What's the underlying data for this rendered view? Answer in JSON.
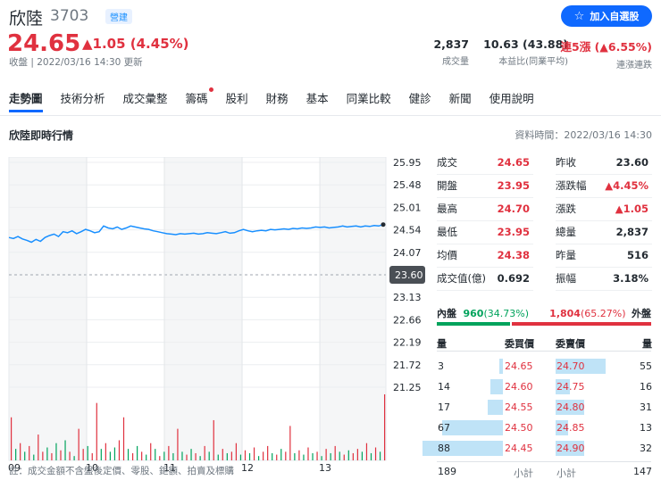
{
  "header": {
    "name": "欣陸",
    "code": "3703",
    "market_badge": "營建",
    "add_button": "加入自選股",
    "price": "24.65",
    "change": "▲1.05 (4.45%)",
    "status": "收盤 | 2022/03/16 14:30 更新",
    "stats": [
      {
        "value": "2,837",
        "label": "成交量"
      },
      {
        "value": "10.63 (43.88)",
        "label": "本益比(同業平均)"
      },
      {
        "value": "連5漲 (▲6.55%)",
        "label": "連漲連跌"
      }
    ]
  },
  "tabs": [
    {
      "label": "走勢圖",
      "active": true
    },
    {
      "label": "技術分析"
    },
    {
      "label": "成交彙整"
    },
    {
      "label": "籌碼",
      "dot": true
    },
    {
      "label": "股利"
    },
    {
      "label": "財務"
    },
    {
      "label": "基本"
    },
    {
      "label": "同業比較"
    },
    {
      "label": "健診"
    },
    {
      "label": "新聞"
    },
    {
      "label": "使用說明"
    }
  ],
  "section": {
    "title": "欣陸即時行情",
    "data_time": "資料時間：2022/03/16 14:30"
  },
  "chart_data": {
    "type": "line",
    "title": "",
    "y_ticks": [
      "25.95",
      "25.48",
      "25.01",
      "24.54",
      "24.07",
      "23.60",
      "23.13",
      "22.66",
      "22.19",
      "21.72",
      "21.25"
    ],
    "x_ticks": [
      "09",
      "10",
      "11",
      "12",
      "13"
    ],
    "ylim": [
      21.25,
      25.95
    ],
    "reference": 23.6,
    "reference_label": "23.60",
    "line": [
      24.38,
      24.36,
      24.4,
      24.35,
      24.32,
      24.28,
      24.34,
      24.3,
      24.38,
      24.42,
      24.45,
      24.4,
      24.5,
      24.48,
      24.52,
      24.46,
      24.5,
      24.55,
      24.52,
      24.48,
      24.5,
      24.62,
      24.58,
      24.56,
      24.6,
      24.55,
      24.58,
      24.62,
      24.6,
      24.58,
      24.56,
      24.55,
      24.52,
      24.5,
      24.48,
      24.46,
      24.45,
      24.44,
      24.46,
      24.45,
      24.46,
      24.47,
      24.45,
      24.46,
      24.48,
      24.47,
      24.46,
      24.48,
      24.5,
      24.47,
      24.48,
      24.52,
      24.55,
      24.52,
      24.5,
      24.52,
      24.53,
      24.52,
      24.55,
      24.54,
      24.55,
      24.56,
      24.55,
      24.57,
      24.56,
      24.58,
      24.57,
      24.58,
      24.6,
      24.59,
      24.6,
      24.58,
      24.59,
      24.6,
      24.62,
      24.6,
      24.61,
      24.62,
      24.6,
      24.62,
      24.61,
      24.63,
      24.62,
      24.65
    ],
    "volume": [
      30,
      8,
      12,
      6,
      10,
      4,
      18,
      6,
      9,
      5,
      12,
      7,
      14,
      6,
      3,
      22,
      8,
      10,
      5,
      40,
      8,
      12,
      6,
      9,
      14,
      30,
      8,
      5,
      10,
      6,
      4,
      12,
      8,
      3,
      6,
      10,
      5,
      22,
      6,
      4,
      8,
      5,
      3,
      10,
      6,
      28,
      4,
      8,
      5,
      6,
      12,
      4,
      7,
      5,
      9,
      3,
      6,
      10,
      5,
      4,
      8,
      6,
      24,
      5,
      7,
      4,
      9,
      5,
      6,
      3,
      8,
      5,
      10,
      6,
      4,
      7,
      5,
      8,
      6,
      12,
      5,
      9,
      6,
      46
    ],
    "volume_up": [
      true,
      false,
      true,
      false,
      true,
      false,
      true,
      true,
      false,
      true,
      false,
      true,
      false,
      true,
      false,
      true,
      true,
      false,
      true,
      true,
      false,
      true,
      false,
      false,
      true,
      true,
      false,
      true,
      false,
      true,
      false,
      true,
      false,
      true,
      false,
      true,
      false,
      true,
      false,
      true,
      false,
      true,
      false,
      true,
      false,
      true,
      false,
      true,
      false,
      true,
      true,
      false,
      true,
      false,
      true,
      false,
      true,
      true,
      false,
      true,
      false,
      true,
      true,
      false,
      true,
      false,
      true,
      false,
      true,
      false,
      true,
      false,
      true,
      false,
      true,
      false,
      true,
      true,
      false,
      true,
      false,
      true,
      false,
      true
    ]
  },
  "footnote": "註：成交金額不含盤後定價、零股、鉅額、拍賣及標購",
  "quote": [
    {
      "l1": "成交",
      "v1": "24.65",
      "c1": "red",
      "l2": "昨收",
      "v2": "23.60",
      "c2": "dark"
    },
    {
      "l1": "開盤",
      "v1": "23.95",
      "c1": "red",
      "l2": "漲跌幅",
      "v2": "▲4.45%",
      "c2": "red"
    },
    {
      "l1": "最高",
      "v1": "24.70",
      "c1": "red",
      "l2": "漲跌",
      "v2": "▲1.05",
      "c2": "red"
    },
    {
      "l1": "最低",
      "v1": "23.95",
      "c1": "red",
      "l2": "總量",
      "v2": "2,837",
      "c2": "dark"
    },
    {
      "l1": "均價",
      "v1": "24.38",
      "c1": "red",
      "l2": "昨量",
      "v2": "516",
      "c2": "dark"
    },
    {
      "l1": "成交值(億)",
      "v1": "0.692",
      "c1": "dark",
      "l2": "振幅",
      "v2": "3.18%",
      "c2": "dark"
    }
  ],
  "inout": {
    "in_label": "內盤",
    "in_value": "960",
    "in_pct": "(34.73%)",
    "out_value": "1,804",
    "out_pct": "(65.27%)",
    "out_label": "外盤",
    "in_ratio": 0.3473
  },
  "orderbook": {
    "headers": [
      "量",
      "委買價",
      "委賣價",
      "量"
    ],
    "rows": [
      {
        "bq": "3",
        "bp": "24.65",
        "sp": "24.70",
        "sq": "55",
        "bw": 0.04,
        "sw": 0.62
      },
      {
        "bq": "14",
        "bp": "24.60",
        "sp": "24.75",
        "sq": "16",
        "bw": 0.16,
        "sw": 0.18
      },
      {
        "bq": "17",
        "bp": "24.55",
        "sp": "24.80",
        "sq": "31",
        "bw": 0.19,
        "sw": 0.35
      },
      {
        "bq": "67",
        "bp": "24.50",
        "sp": "24.85",
        "sq": "13",
        "bw": 0.76,
        "sw": 0.15
      },
      {
        "bq": "88",
        "bp": "24.45",
        "sp": "24.90",
        "sq": "32",
        "bw": 1.0,
        "sw": 0.36
      }
    ],
    "buy_total": "189",
    "buy_total_label": "小計",
    "sell_total_label": "小計",
    "sell_total": "147"
  }
}
